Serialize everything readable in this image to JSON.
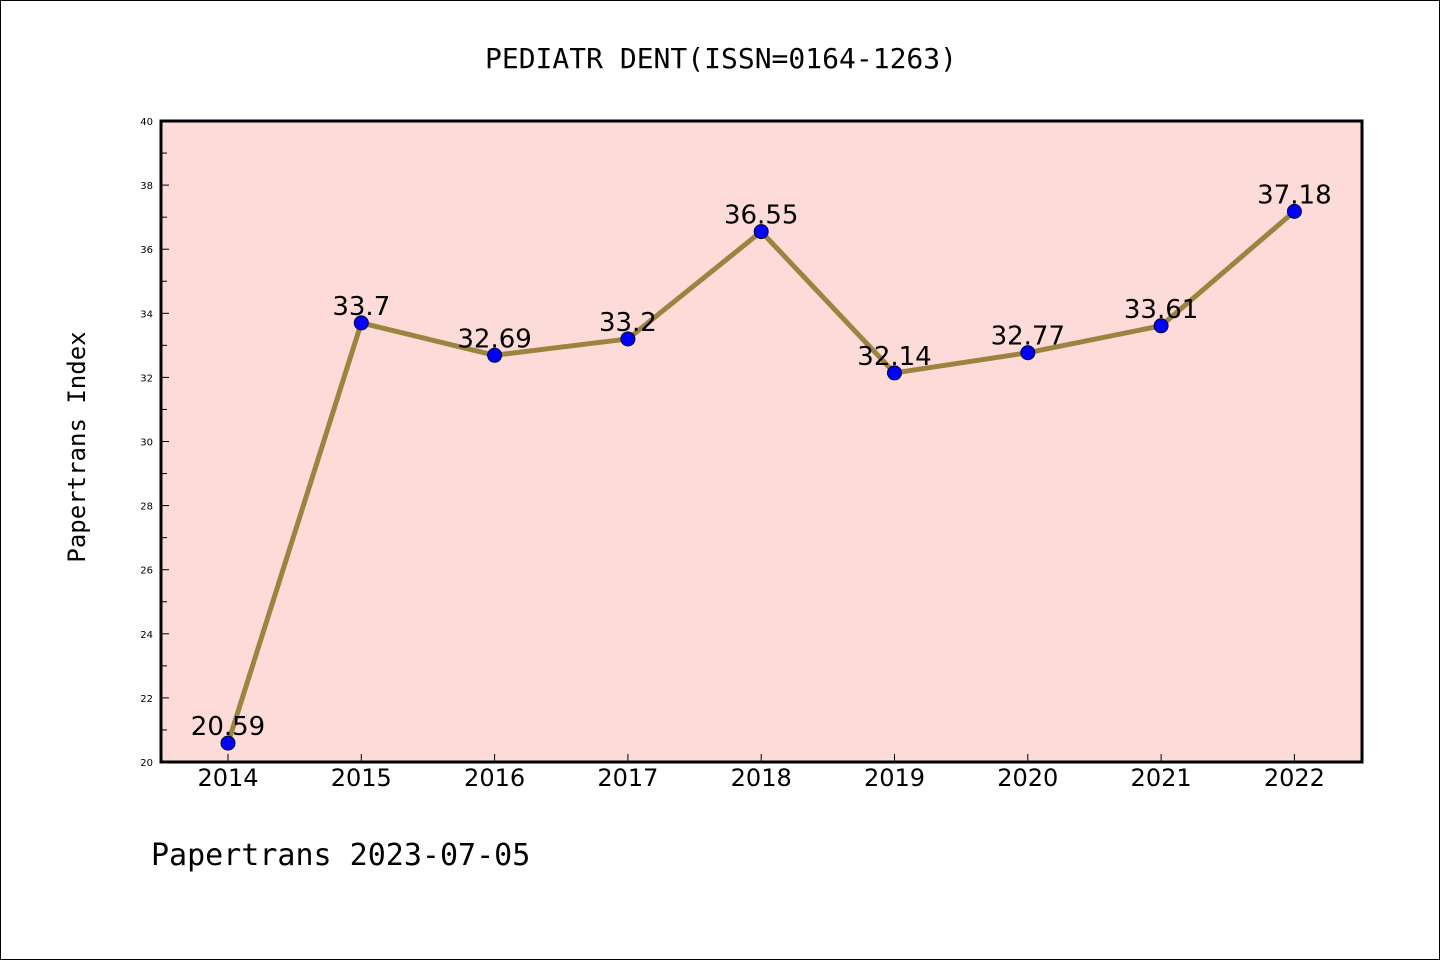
{
  "chart_data": {
    "type": "line",
    "title": "PEDIATR DENT(ISSN=0164-1263)",
    "xlabel": "",
    "ylabel": "Papertrans Index",
    "categories": [
      "2014",
      "2015",
      "2016",
      "2017",
      "2018",
      "2019",
      "2020",
      "2021",
      "2022"
    ],
    "series": [
      {
        "values": [
          20.59,
          33.7,
          32.69,
          33.2,
          36.55,
          32.14,
          32.77,
          33.61,
          37.18
        ],
        "labels": [
          "20.59",
          "33.7",
          "32.69",
          "33.2",
          "36.55",
          "32.14",
          "32.77",
          "33.61",
          "37.18"
        ]
      }
    ],
    "ylim": [
      20,
      40
    ],
    "yticks": [
      "20",
      "22",
      "24",
      "26",
      "28",
      "30",
      "32",
      "34",
      "36",
      "38",
      "40"
    ],
    "grid": false,
    "legend": "none",
    "colors": {
      "plot_background": "#fddbd8",
      "line": "#9b8340",
      "marker": "#0000ff"
    }
  },
  "footer": "Papertrans 2023-07-05"
}
